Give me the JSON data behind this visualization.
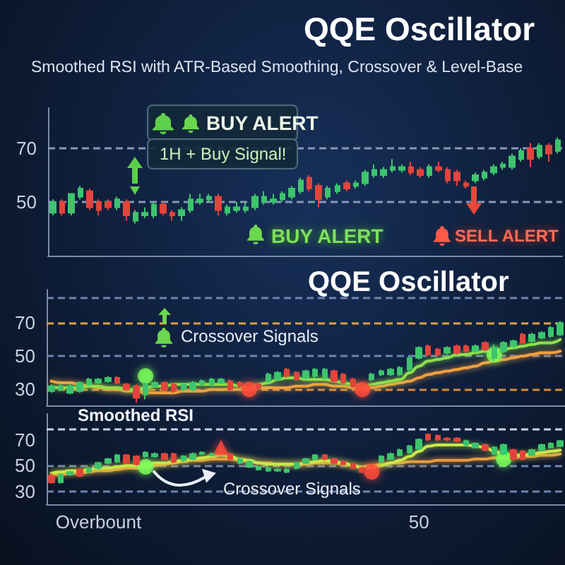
{
  "chart_data": [
    {
      "type": "candlestick",
      "title": "QQE Oscillator",
      "subtitle": "Smoothed RSI with ATR-Based Smoothing, Crossover & Level-Base",
      "tick_labels": "y",
      "categories": [
        null,
        null,
        null,
        null,
        null,
        null,
        null,
        null,
        null,
        null,
        null,
        null,
        null,
        null,
        null,
        null,
        null,
        null,
        null,
        null,
        null,
        null,
        null,
        null,
        null,
        null,
        null,
        null,
        null,
        null,
        null,
        null,
        null,
        null,
        null,
        null,
        null,
        null,
        null,
        null,
        null,
        null,
        null,
        null,
        null,
        null,
        null,
        null,
        null,
        null,
        null,
        null,
        null,
        null,
        null,
        null
      ],
      "ohlc": [
        [
          46,
          51,
          45,
          50
        ],
        [
          50,
          51,
          45,
          46
        ],
        [
          46,
          53,
          45,
          53
        ],
        [
          52,
          56,
          51,
          55
        ],
        [
          54,
          55,
          47,
          48
        ],
        [
          50,
          51,
          45,
          47
        ],
        [
          50,
          51,
          47,
          48
        ],
        [
          48,
          52,
          47,
          51
        ],
        [
          50,
          51,
          43,
          45
        ],
        [
          43,
          47,
          42,
          46
        ],
        [
          45,
          48,
          44,
          46
        ],
        [
          45,
          50,
          44,
          49
        ],
        [
          49,
          50,
          45,
          46
        ],
        [
          46,
          47,
          43,
          45
        ],
        [
          45,
          48,
          43,
          47
        ],
        [
          47,
          53,
          46,
          51
        ],
        [
          50,
          53,
          49,
          51
        ],
        [
          51,
          53,
          50,
          52
        ],
        [
          52,
          53,
          45,
          47
        ],
        [
          46,
          49,
          45,
          48
        ],
        [
          47,
          50,
          46,
          48
        ],
        [
          47,
          50,
          46,
          48
        ],
        [
          48,
          53,
          47,
          52
        ],
        [
          50,
          54,
          49,
          52
        ],
        [
          50,
          53,
          49,
          51
        ],
        [
          51,
          54,
          50,
          53
        ],
        [
          52,
          56,
          51,
          55
        ],
        [
          54,
          59,
          53,
          58
        ],
        [
          59,
          60,
          54,
          55
        ],
        [
          56,
          57,
          48,
          51
        ],
        [
          52,
          56,
          51,
          55
        ],
        [
          54,
          57,
          53,
          56
        ],
        [
          57,
          58,
          54,
          55
        ],
        [
          56,
          58,
          55,
          57
        ],
        [
          57,
          62,
          56,
          61
        ],
        [
          60,
          64,
          59,
          62
        ],
        [
          60,
          63,
          59,
          62
        ],
        [
          62,
          66,
          61,
          63
        ],
        [
          62,
          64,
          61,
          63
        ],
        [
          63,
          65,
          60,
          61
        ],
        [
          62,
          63,
          59,
          60
        ],
        [
          60,
          64,
          59,
          63
        ],
        [
          63,
          65,
          61,
          62
        ],
        [
          62,
          63,
          57,
          58
        ],
        [
          61,
          62,
          56,
          58
        ],
        [
          57,
          58,
          55,
          56
        ],
        [
          58,
          61,
          57,
          60
        ],
        [
          59,
          62,
          58,
          61
        ],
        [
          61,
          64,
          60,
          63
        ],
        [
          63,
          65,
          62,
          64
        ],
        [
          63,
          68,
          62,
          67
        ],
        [
          66,
          70,
          65,
          69
        ],
        [
          70,
          72,
          63,
          66
        ],
        [
          67,
          72,
          66,
          71
        ],
        [
          71,
          72,
          65,
          68
        ],
        [
          69,
          74,
          68,
          73
        ]
      ],
      "colors": [
        "#3ec46d",
        "#e2453c",
        "#3ec46d",
        "#3ec46d",
        "#e2453c",
        "#e2453c",
        "#e2453c",
        "#3ec46d",
        "#e2453c",
        "#3ec46d",
        "#3ec46d",
        "#3ec46d",
        "#e2453c",
        "#e2453c",
        "#3ec46d",
        "#3ec46d",
        "#3ec46d",
        "#3ec46d",
        "#e2453c",
        "#3ec46d",
        "#3ec46d",
        "#3ec46d",
        "#3ec46d",
        "#3ec46d",
        "#3ec46d",
        "#3ec46d",
        "#3ec46d",
        "#3ec46d",
        "#e2453c",
        "#e2453c",
        "#3ec46d",
        "#3ec46d",
        "#e2453c",
        "#3ec46d",
        "#3ec46d",
        "#3ec46d",
        "#3ec46d",
        "#3ec46d",
        "#3ec46d",
        "#e2453c",
        "#e2453c",
        "#3ec46d",
        "#e2453c",
        "#e2453c",
        "#e2453c",
        "#e2453c",
        "#3ec46d",
        "#3ec46d",
        "#3ec46d",
        "#3ec46d",
        "#3ec46d",
        "#3ec46d",
        "#e2453c",
        "#3ec46d",
        "#e2453c",
        "#3ec46d"
      ],
      "ylim": [
        30,
        85
      ],
      "yticks": [
        50,
        70
      ],
      "ref_lines": [
        {
          "axis": "y",
          "value": 70,
          "color": "#8797b5",
          "line_style": "dashed"
        },
        {
          "axis": "y",
          "value": 50,
          "color": "#8797b5",
          "line_style": "dashed"
        }
      ],
      "annotations": [
        "BUY ALERT",
        "1H + Buy Signal!",
        "BUY ALERT",
        "SELL ALERT"
      ]
    },
    {
      "type": "candlestick",
      "title": "QQE Oscillator",
      "tick_labels": "y",
      "categories": [
        null,
        null,
        null,
        null,
        null,
        null,
        null,
        null,
        null,
        null,
        null,
        null,
        null,
        null,
        null,
        null,
        null,
        null,
        null,
        null,
        null,
        null,
        null,
        null,
        null,
        null,
        null,
        null,
        null,
        null,
        null,
        null,
        null,
        null,
        null,
        null,
        null,
        null,
        null,
        null,
        null,
        null,
        null,
        null,
        null,
        null,
        null,
        null,
        null,
        null,
        null,
        null,
        null,
        null,
        null
      ],
      "ohlc": [
        [
          29,
          33,
          28,
          32
        ],
        [
          30,
          33,
          29,
          32
        ],
        [
          28,
          33,
          27,
          32
        ],
        [
          29,
          35,
          28,
          34
        ],
        [
          33,
          37,
          32,
          36
        ],
        [
          34,
          37,
          33,
          36
        ],
        [
          35,
          38,
          34,
          37
        ],
        [
          37,
          38,
          33,
          34
        ],
        [
          33,
          34,
          29,
          30
        ],
        [
          32,
          33,
          22,
          25
        ],
        [
          27,
          34,
          24,
          33
        ],
        [
          32,
          35,
          31,
          34
        ],
        [
          34,
          35,
          29,
          30
        ],
        [
          33,
          34,
          28,
          29
        ],
        [
          30,
          34,
          29,
          33
        ],
        [
          30,
          35,
          29,
          34
        ],
        [
          33,
          36,
          32,
          35
        ],
        [
          33,
          37,
          32,
          36
        ],
        [
          34,
          37,
          33,
          36
        ],
        [
          35,
          36,
          29,
          30
        ],
        [
          34,
          35,
          31,
          32
        ],
        null,
        [
          33,
          34,
          30,
          31
        ],
        [
          35,
          40,
          34,
          39
        ],
        [
          36,
          41,
          35,
          40
        ],
        [
          42,
          43,
          37,
          38
        ],
        [
          40,
          41,
          35,
          36
        ],
        [
          37,
          42,
          36,
          41
        ],
        [
          38,
          43,
          37,
          42
        ],
        [
          37,
          43,
          36,
          42
        ],
        [
          41,
          42,
          34,
          35
        ],
        [
          39,
          40,
          33,
          34
        ],
        [
          36,
          37,
          31,
          32
        ],
        null,
        [
          36,
          40,
          35,
          39
        ],
        [
          39,
          42,
          38,
          41
        ],
        [
          39,
          43,
          38,
          42
        ],
        [
          39,
          44,
          38,
          43
        ],
        [
          42,
          50,
          41,
          49
        ],
        [
          49,
          56,
          48,
          55
        ],
        [
          56,
          57,
          50,
          51
        ],
        [
          54,
          55,
          50,
          51
        ],
        [
          52,
          56,
          51,
          55
        ],
        [
          56,
          57,
          51,
          52
        ],
        [
          56,
          57,
          52,
          53
        ],
        [
          53,
          57,
          52,
          56
        ],
        [
          58,
          59,
          53,
          54
        ],
        [
          49,
          57,
          47,
          55
        ],
        [
          53,
          59,
          52,
          58
        ],
        [
          56,
          60,
          55,
          59
        ],
        [
          63,
          64,
          57,
          58
        ],
        [
          59,
          64,
          58,
          63
        ],
        [
          61,
          65,
          60,
          64
        ],
        [
          62,
          68,
          61,
          67
        ],
        [
          63,
          71,
          62,
          70
        ]
      ],
      "colors": [
        "#3ec46d",
        "#3ec46d",
        "#3ec46d",
        "#3ec46d",
        "#3ec46d",
        "#3ec46d",
        "#3ec46d",
        "#e2453c",
        "#e2453c",
        "#e2453c",
        "#3ec46d",
        "#3ec46d",
        "#e2453c",
        "#e2453c",
        "#3ec46d",
        "#3ec46d",
        "#3ec46d",
        "#3ec46d",
        "#3ec46d",
        "#e2453c",
        "#e2453c",
        null,
        "#e2453c",
        "#3ec46d",
        "#3ec46d",
        "#e2453c",
        "#e2453c",
        "#3ec46d",
        "#3ec46d",
        "#3ec46d",
        "#e2453c",
        "#e2453c",
        "#e2453c",
        null,
        "#3ec46d",
        "#3ec46d",
        "#3ec46d",
        "#3ec46d",
        "#3ec46d",
        "#3ec46d",
        "#e2453c",
        "#e2453c",
        "#3ec46d",
        "#e2453c",
        "#e2453c",
        "#3ec46d",
        "#e2453c",
        "#3ec46d",
        "#3ec46d",
        "#3ec46d",
        "#e2453c",
        "#3ec46d",
        "#3ec46d",
        "#3ec46d",
        "#3ec46d"
      ],
      "series": [
        {
          "type": "line",
          "color": "#f0a040",
          "values": [
            35,
            34,
            34,
            33,
            32,
            31,
            30,
            30,
            29,
            29,
            28,
            28,
            28,
            28,
            29,
            29,
            29,
            30,
            30,
            30,
            30,
            30,
            31,
            31,
            31,
            31,
            32,
            32,
            33,
            33,
            32,
            32,
            31,
            31,
            31,
            32,
            33,
            34,
            35,
            37,
            39,
            40,
            41,
            42,
            43,
            44,
            46,
            47,
            48,
            49,
            50,
            51,
            52,
            52,
            53
          ]
        },
        {
          "type": "line",
          "color": "#8ee04a",
          "values": [
            31,
            31,
            31,
            31,
            32,
            32,
            31,
            31,
            30,
            30,
            31,
            32,
            32,
            33,
            33,
            33,
            33,
            33,
            33,
            33,
            32,
            31,
            33,
            34,
            36,
            37,
            37,
            36,
            36,
            36,
            35,
            34,
            33,
            31,
            33,
            34,
            35,
            36,
            40,
            44,
            47,
            48,
            49,
            51,
            51,
            52,
            53,
            53,
            54,
            55,
            56,
            57,
            58,
            58,
            60
          ]
        },
        {
          "type": "scatter",
          "color": "#7dff5a",
          "marker": "circle",
          "values": [
            null,
            null,
            null,
            null,
            null,
            null,
            null,
            null,
            null,
            null,
            38,
            null,
            null,
            null,
            null,
            null,
            null,
            null,
            null,
            null,
            null,
            null,
            null,
            null,
            null,
            null,
            null,
            null,
            null,
            null,
            null,
            null,
            null,
            null,
            null,
            null,
            null,
            null,
            null,
            null,
            null,
            null,
            null,
            null,
            null,
            null,
            null,
            51,
            null,
            null,
            null,
            null,
            null,
            null,
            null
          ]
        },
        {
          "type": "scatter",
          "color": "#ff4a3a",
          "marker": "circle",
          "values": [
            null,
            null,
            null,
            null,
            null,
            null,
            null,
            null,
            null,
            null,
            null,
            null,
            null,
            null,
            null,
            null,
            null,
            null,
            null,
            null,
            null,
            30,
            null,
            null,
            null,
            null,
            null,
            null,
            null,
            null,
            null,
            null,
            null,
            30,
            null,
            null,
            null,
            null,
            null,
            null,
            null,
            null,
            null,
            null,
            null,
            null,
            null,
            null,
            null,
            null,
            null,
            null,
            null,
            null,
            null
          ]
        }
      ],
      "ylim": [
        20,
        90
      ],
      "yticks": [
        30,
        50,
        70
      ],
      "ref_lines": [
        {
          "axis": "y",
          "value": 85,
          "color": "#6d84ad",
          "line_style": "dashed"
        },
        {
          "axis": "y",
          "value": 70,
          "color": "#e0a040",
          "line_style": "dashed"
        },
        {
          "axis": "y",
          "value": 50,
          "color": "#6d84ad",
          "line_style": "dashed"
        },
        {
          "axis": "y",
          "value": 30,
          "color": "#d98a3a",
          "line_style": "dashed"
        }
      ],
      "annotations": [
        "Crossover Signals"
      ]
    },
    {
      "type": "candlestick",
      "categories": [
        null,
        null,
        null,
        null,
        null,
        "Overbount",
        null,
        null,
        null,
        null,
        null,
        null,
        null,
        null,
        null,
        null,
        null,
        null,
        null,
        null,
        null,
        null,
        null,
        null,
        null,
        null,
        null,
        null,
        null,
        null,
        null,
        null,
        null,
        null,
        null,
        null,
        null,
        null,
        null,
        "50",
        null,
        null,
        null,
        null,
        null,
        null,
        null,
        null,
        null,
        null,
        null,
        null,
        null,
        null,
        null
      ],
      "ohlc": [
        [
          42,
          44,
          36,
          37
        ],
        [
          37,
          44,
          36,
          43
        ],
        [
          43,
          46,
          42,
          45
        ],
        [
          47,
          48,
          41,
          42
        ],
        [
          45,
          49,
          44,
          48
        ],
        [
          48,
          53,
          47,
          52
        ],
        [
          52,
          56,
          51,
          55
        ],
        [
          53,
          59,
          52,
          58
        ],
        [
          58,
          59,
          51,
          52
        ],
        [
          57,
          58,
          50,
          51
        ],
        [
          57,
          61,
          56,
          60
        ],
        [
          57,
          60,
          56,
          59
        ],
        [
          59,
          60,
          54,
          55
        ],
        [
          59,
          60,
          52,
          53
        ],
        [
          54,
          58,
          53,
          57
        ],
        [
          55,
          60,
          54,
          59
        ],
        [
          59,
          61,
          58,
          60
        ],
        [
          58,
          60,
          57,
          59
        ],
        null,
        [
          59,
          60,
          54,
          55
        ],
        [
          52,
          56,
          51,
          55
        ],
        [
          49,
          54,
          48,
          53
        ],
        [
          47,
          50,
          46,
          49
        ],
        [
          46,
          49,
          45,
          48
        ],
        [
          46,
          48,
          45,
          47
        ],
        [
          45,
          48,
          44,
          47
        ],
        [
          48,
          53,
          47,
          52
        ],
        [
          52,
          56,
          51,
          55
        ],
        [
          55,
          59,
          54,
          58
        ],
        [
          58,
          59,
          54,
          55
        ],
        [
          55,
          56,
          51,
          52
        ],
        [
          53,
          54,
          50,
          51
        ],
        [
          51,
          52,
          47,
          48
        ],
        [
          48,
          49,
          44,
          45
        ],
        null,
        [
          53,
          58,
          52,
          57
        ],
        [
          55,
          60,
          54,
          59
        ],
        [
          58,
          63,
          57,
          62
        ],
        [
          60,
          66,
          59,
          65
        ],
        [
          63,
          71,
          62,
          70
        ],
        [
          74,
          75,
          69,
          70
        ],
        [
          73,
          74,
          69,
          70
        ],
        [
          71,
          72,
          69,
          70
        ],
        [
          71,
          72,
          68,
          69
        ],
        [
          66,
          70,
          65,
          69
        ],
        [
          64,
          68,
          63,
          67
        ],
        [
          66,
          67,
          61,
          62
        ],
        [
          59,
          65,
          58,
          64
        ],
        [
          59,
          67,
          58,
          66
        ],
        [
          62,
          63,
          54,
          55
        ],
        [
          61,
          62,
          54,
          55
        ],
        [
          58,
          63,
          57,
          62
        ],
        [
          62,
          67,
          61,
          66
        ],
        [
          64,
          68,
          63,
          67
        ],
        [
          65,
          70,
          64,
          69
        ]
      ],
      "colors": [
        "#e2453c",
        "#3ec46d",
        "#3ec46d",
        "#e2453c",
        "#3ec46d",
        "#3ec46d",
        "#3ec46d",
        "#3ec46d",
        "#e2453c",
        "#e2453c",
        "#3ec46d",
        "#3ec46d",
        "#e2453c",
        "#e2453c",
        "#3ec46d",
        "#3ec46d",
        "#3ec46d",
        "#3ec46d",
        null,
        "#e2453c",
        "#3ec46d",
        "#3ec46d",
        "#3ec46d",
        "#3ec46d",
        "#3ec46d",
        "#3ec46d",
        "#3ec46d",
        "#3ec46d",
        "#3ec46d",
        "#e2453c",
        "#e2453c",
        "#e2453c",
        "#e2453c",
        "#e2453c",
        null,
        "#3ec46d",
        "#3ec46d",
        "#3ec46d",
        "#3ec46d",
        "#3ec46d",
        "#e2453c",
        "#e2453c",
        "#e2453c",
        "#e2453c",
        "#3ec46d",
        "#3ec46d",
        "#e2453c",
        "#3ec46d",
        "#3ec46d",
        "#e2453c",
        "#e2453c",
        "#3ec46d",
        "#3ec46d",
        "#3ec46d",
        "#3ec46d"
      ],
      "series": [
        {
          "type": "line",
          "color": "#e89a3a",
          "values": [
            43,
            43,
            44,
            44,
            45,
            46,
            46,
            47,
            48,
            48,
            49,
            50,
            51,
            52,
            53,
            54,
            54,
            55,
            55,
            55,
            54,
            53,
            52,
            52,
            51,
            51,
            51,
            51,
            52,
            52,
            52,
            51,
            50,
            49,
            50,
            51,
            52,
            52,
            53,
            53,
            53,
            54,
            54,
            54,
            54,
            55,
            55,
            56,
            56,
            56,
            57,
            57,
            58,
            58,
            59
          ]
        },
        {
          "type": "line",
          "color": "#c8e84a",
          "values": [
            44,
            45,
            46,
            46,
            47,
            48,
            48,
            49,
            50,
            50,
            51,
            52,
            52,
            53,
            54,
            55,
            56,
            57,
            58,
            57,
            55,
            54,
            52,
            51,
            51,
            51,
            51,
            52,
            53,
            54,
            53,
            52,
            50,
            48,
            48,
            50,
            52,
            54,
            57,
            61,
            65,
            66,
            66,
            66,
            66,
            65,
            64,
            61,
            59,
            58,
            58,
            59,
            60,
            61,
            62
          ]
        },
        {
          "type": "scatter",
          "color": "#7dff5a",
          "marker": "circle",
          "values": [
            null,
            null,
            null,
            null,
            null,
            null,
            null,
            null,
            null,
            null,
            49,
            null,
            null,
            null,
            null,
            null,
            null,
            null,
            null,
            null,
            null,
            null,
            null,
            null,
            null,
            null,
            null,
            null,
            null,
            null,
            null,
            null,
            null,
            null,
            null,
            null,
            null,
            null,
            null,
            null,
            null,
            null,
            null,
            null,
            null,
            null,
            null,
            null,
            55,
            null,
            null,
            null,
            null,
            null,
            null
          ]
        },
        {
          "type": "scatter",
          "color": "#ff4a3a",
          "marker": "circle",
          "values": [
            null,
            null,
            null,
            null,
            null,
            null,
            null,
            null,
            null,
            null,
            null,
            null,
            null,
            null,
            null,
            null,
            null,
            null,
            null,
            null,
            null,
            null,
            null,
            null,
            null,
            null,
            null,
            null,
            null,
            null,
            null,
            null,
            null,
            null,
            45,
            null,
            null,
            null,
            null,
            null,
            null,
            null,
            null,
            null,
            null,
            null,
            null,
            null,
            null,
            null,
            null,
            null,
            null,
            null,
            null
          ]
        },
        {
          "type": "scatter",
          "color": "#ff4a3a",
          "marker": "triangle",
          "values": [
            null,
            null,
            null,
            null,
            null,
            null,
            null,
            null,
            null,
            null,
            null,
            null,
            null,
            null,
            null,
            null,
            null,
            null,
            64,
            null,
            null,
            null,
            null,
            null,
            null,
            null,
            null,
            null,
            null,
            null,
            null,
            null,
            null,
            null,
            null,
            null,
            null,
            null,
            null,
            null,
            null,
            null,
            null,
            null,
            null,
            null,
            null,
            null,
            null,
            null,
            null,
            null,
            null,
            null,
            null
          ]
        }
      ],
      "ylim": [
        20,
        90
      ],
      "yticks": [
        30,
        50,
        70
      ],
      "ref_lines": [
        {
          "axis": "y",
          "value": 78,
          "label": "Smoothed RSI",
          "color": "#c9d1e0",
          "line_style": "dashed"
        },
        {
          "axis": "y",
          "value": 50,
          "color": "#6d84ad",
          "line_style": "dashed"
        },
        {
          "axis": "y",
          "value": 30,
          "color": "#6d84ad",
          "line_style": "dashed"
        }
      ],
      "annotations": [
        {
          "text": "Crossover Signals",
          "y": 42
        }
      ]
    }
  ]
}
